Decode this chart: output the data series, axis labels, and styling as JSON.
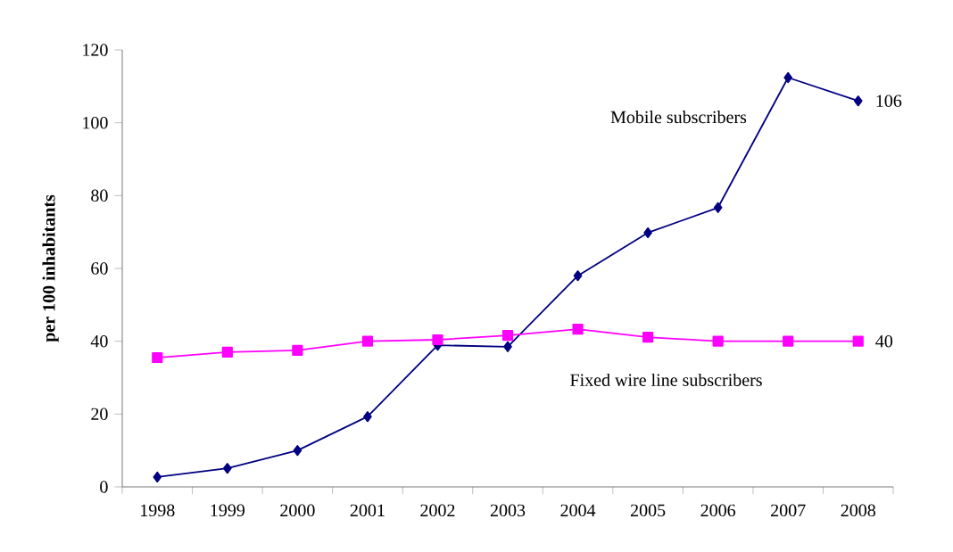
{
  "chart_data": {
    "type": "line",
    "ylabel": "per 100 inhabitants",
    "categories": [
      "1998",
      "1999",
      "2000",
      "2001",
      "2002",
      "2003",
      "2004",
      "2005",
      "2006",
      "2007",
      "2008"
    ],
    "ylim": [
      0,
      120
    ],
    "yticks": [
      0,
      20,
      40,
      60,
      80,
      100,
      120
    ],
    "series": [
      {
        "name": "Mobile subscribers",
        "color": "#000080",
        "marker": "diamond",
        "values": [
          2.7,
          5.1,
          10,
          19.3,
          38.9,
          38.5,
          58,
          69.8,
          76.7,
          112.4,
          106
        ],
        "value_labels": [
          null,
          null,
          null,
          null,
          null,
          null,
          null,
          null,
          null,
          null,
          "106"
        ]
      },
      {
        "name": "Fixed wire line subscribers",
        "color": "#ff00ff",
        "marker": "square",
        "values": [
          35.5,
          37,
          37.5,
          40,
          40.4,
          41.6,
          43.3,
          41.1,
          40,
          40,
          40
        ],
        "value_labels": [
          null,
          null,
          null,
          null,
          null,
          null,
          null,
          null,
          null,
          null,
          "40"
        ]
      }
    ]
  }
}
